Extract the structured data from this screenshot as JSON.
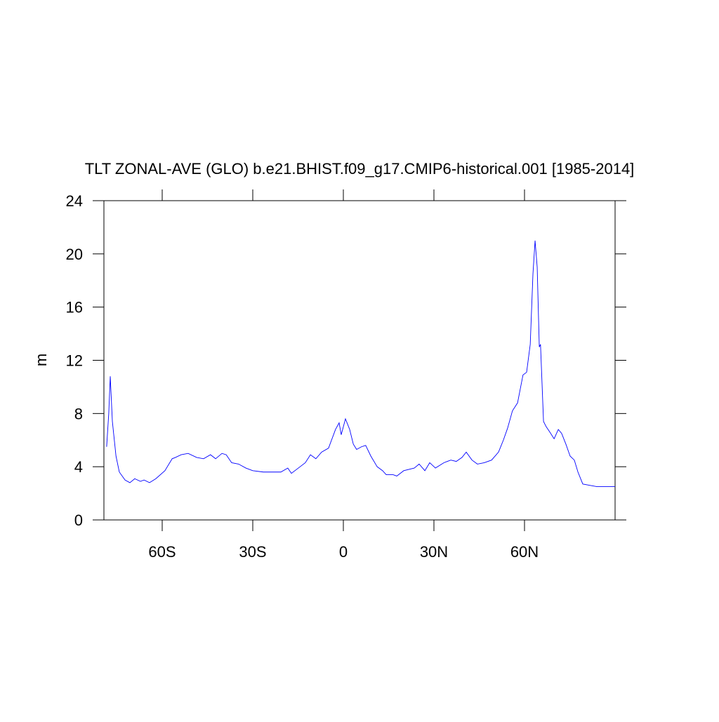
{
  "chart_data": {
    "type": "line",
    "title": "TLT ZONAL-AVE (GLO) b.e21.BHIST.f09_g17.CMIP6-historical.001 [1985-2014]",
    "y_label": "m",
    "x": [
      -78.4,
      -77.7,
      -77.2,
      -76.5,
      -75.3,
      -74.2,
      -72.3,
      -70.7,
      -69.1,
      -67.2,
      -66.0,
      -64.2,
      -62.1,
      -59.1,
      -56.7,
      -55.6,
      -53.7,
      -51.4,
      -48.6,
      -46.3,
      -44.0,
      -42.3,
      -40.2,
      -38.8,
      -37.0,
      -34.7,
      -32.3,
      -30.0,
      -26.5,
      -23.0,
      -20.7,
      -18.4,
      -17.2,
      -14.9,
      -12.6,
      -10.9,
      -9.1,
      -7.2,
      -4.9,
      -2.6,
      -1.4,
      -0.7,
      0.7,
      2.1,
      3.3,
      4.4,
      6.0,
      7.4,
      9.1,
      11.2,
      13.0,
      14.2,
      16.5,
      17.7,
      20.0,
      23.5,
      25.1,
      27.0,
      28.6,
      30.5,
      33.3,
      35.6,
      37.4,
      39.3,
      40.7,
      42.6,
      44.4,
      46.7,
      49.1,
      51.4,
      53.0,
      54.4,
      56.0,
      57.7,
      59.5,
      60.7,
      61.9,
      62.8,
      63.5,
      64.2,
      64.9,
      65.3,
      66.3,
      67.2,
      68.4,
      69.8,
      71.2,
      72.3,
      73.7,
      75.1,
      76.5,
      77.7,
      79.3,
      81.6,
      84.0,
      86.3,
      90.0
    ],
    "series": [
      {
        "color": "#0000ff",
        "values": [
          5.5,
          8.0,
          10.8,
          7.4,
          4.8,
          3.6,
          3.0,
          2.8,
          3.1,
          2.9,
          3.0,
          2.8,
          3.1,
          3.7,
          4.6,
          4.7,
          4.9,
          5.0,
          4.7,
          4.6,
          4.9,
          4.6,
          5.0,
          4.9,
          4.3,
          4.2,
          3.9,
          3.7,
          3.6,
          3.6,
          3.6,
          3.9,
          3.5,
          3.9,
          4.3,
          4.9,
          4.6,
          5.1,
          5.4,
          6.8,
          7.3,
          6.4,
          7.6,
          6.8,
          5.7,
          5.3,
          5.5,
          5.6,
          4.8,
          4.0,
          3.7,
          3.4,
          3.4,
          3.3,
          3.7,
          3.9,
          4.2,
          3.7,
          4.3,
          3.9,
          4.3,
          4.5,
          4.4,
          4.7,
          5.1,
          4.5,
          4.2,
          4.3,
          4.5,
          5.1,
          6.0,
          6.9,
          8.2,
          8.8,
          10.9,
          11.1,
          13.2,
          18.5,
          21.0,
          19.0,
          13.0,
          13.2,
          7.4,
          7.0,
          6.6,
          6.1,
          6.8,
          6.5,
          5.7,
          4.8,
          4.5,
          3.6,
          2.7,
          2.6,
          2.5,
          2.5,
          2.5
        ]
      }
    ],
    "xlim": [
      -79.3,
      90
    ],
    "xticks": [
      {
        "value": -60,
        "label": "60S"
      },
      {
        "value": -30,
        "label": "30S"
      },
      0,
      {
        "value": 30,
        "label": "30N"
      },
      {
        "value": 60,
        "label": "60N"
      }
    ],
    "ylim": [
      0,
      24
    ],
    "yticks": [
      0,
      4,
      8,
      12,
      16,
      20,
      24
    ]
  }
}
